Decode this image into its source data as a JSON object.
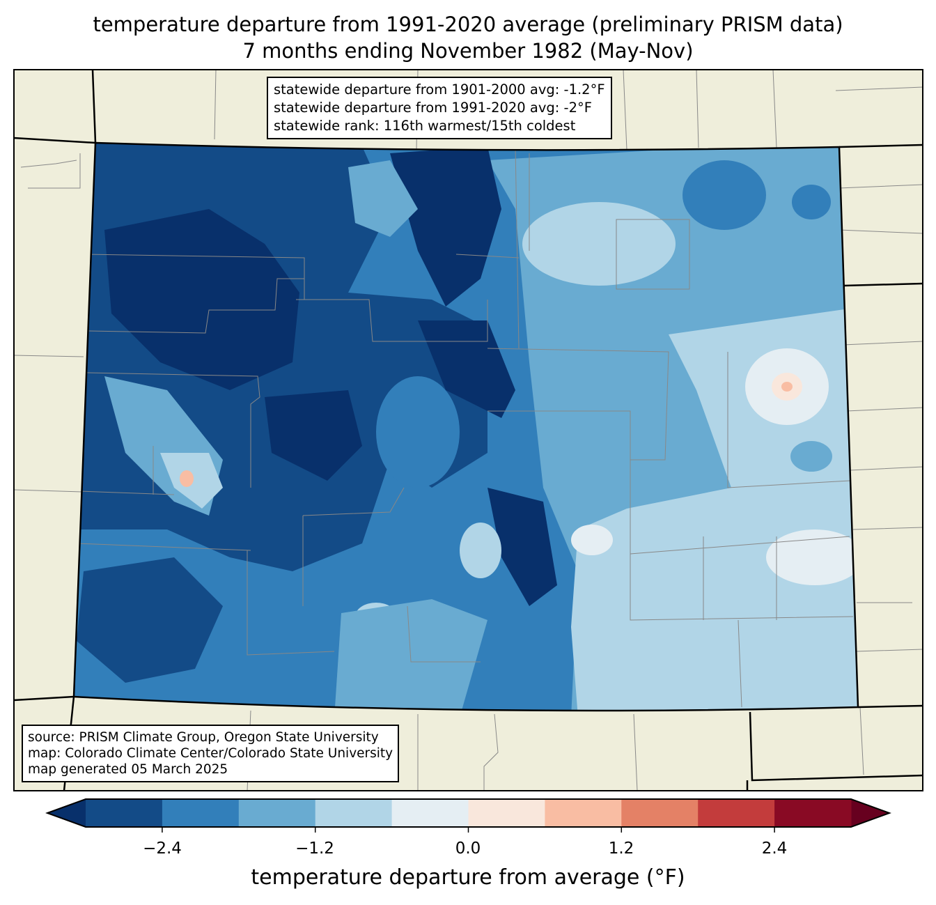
{
  "title": {
    "line1": "temperature departure from 1991-2020 average (preliminary PRISM data)",
    "line2": "7 months ending November 1982 (May-Nov)"
  },
  "stats_box": {
    "line1": "statewide departure from 1901-2000 avg: -1.2°F",
    "line2": "statewide departure from 1991-2020 avg: -2°F",
    "line3": "statewide rank: 116th warmest/15th coldest"
  },
  "source_box": {
    "line1": "source: PRISM Climate Group, Oregon State University",
    "line2": "map: Colorado Climate Center/Colorado State University",
    "line3": "map generated 05 March 2025"
  },
  "colorbar": {
    "label": "temperature departure from average (°F)",
    "ticks": [
      "−2.4",
      "−1.2",
      "0.0",
      "1.2",
      "2.4"
    ],
    "bounds": [
      -3.0,
      -2.4,
      -1.8,
      -1.2,
      -0.6,
      0.0,
      0.6,
      1.2,
      1.8,
      2.4,
      3.0
    ],
    "colors": [
      "#134b87",
      "#327fba",
      "#69abd1",
      "#b1d5e7",
      "#e5eef3",
      "#f9e7dc",
      "#f9bda3",
      "#e48166",
      "#c33c3c",
      "#890a24"
    ],
    "extend_low": "#08306b",
    "extend_high": "#67001f"
  },
  "map": {
    "background": "#efeedb"
  }
}
